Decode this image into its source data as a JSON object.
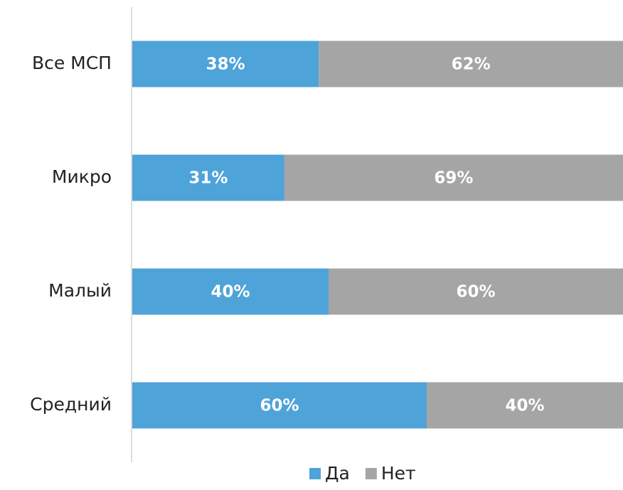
{
  "chart_data": {
    "type": "stacked-bar-horizontal",
    "categories": [
      "Все МСП",
      "Микро",
      "Малый",
      "Средний"
    ],
    "xlim": [
      0,
      100
    ],
    "series": [
      {
        "name": "Да",
        "color": "#4ea3d9",
        "values": [
          38,
          31,
          40,
          60
        ],
        "value_labels": [
          "38%",
          "31%",
          "40%",
          "60%"
        ]
      },
      {
        "name": "Нет",
        "color": "#a5a5a5",
        "values": [
          62,
          69,
          60,
          40
        ],
        "value_labels": [
          "62%",
          "69%",
          "60%",
          "40%"
        ]
      }
    ],
    "legend": "bottom"
  }
}
